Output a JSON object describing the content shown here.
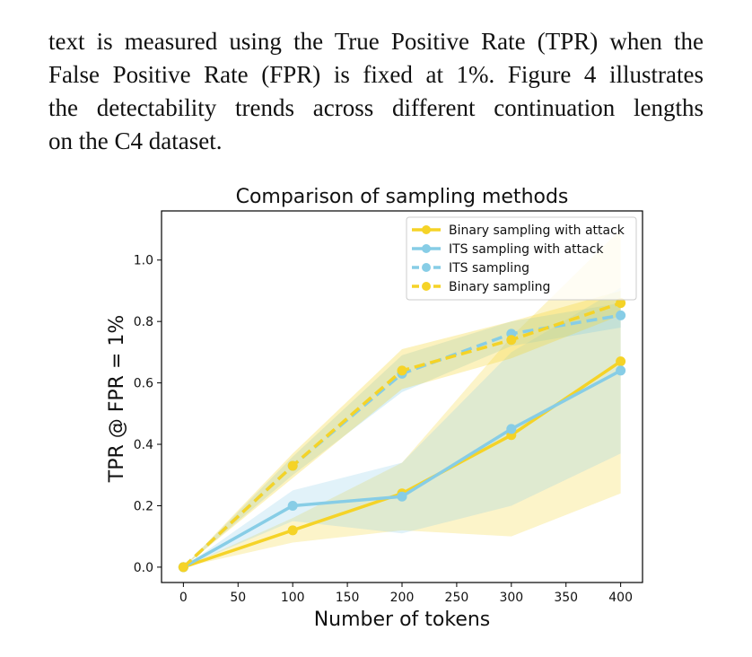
{
  "paragraph": {
    "line1": "text is measured using the True Positive Rate (TPR) when the",
    "line2": "False Positive Rate (FPR) is fixed at 1%. Figure 4 illustrates",
    "line3": "the detectability trends across different continuation lengths",
    "line4": "on the C4 dataset."
  },
  "chart_data": {
    "type": "line",
    "title": "Comparison of sampling methods",
    "xlabel": "Number of tokens",
    "ylabel": "TPR @ FPR = 1%",
    "x": [
      0,
      100,
      200,
      300,
      400
    ],
    "xticks": [
      "0",
      "50",
      "100",
      "150",
      "200",
      "250",
      "300",
      "350",
      "400"
    ],
    "yticks": [
      "0.0",
      "0.2",
      "0.4",
      "0.6",
      "0.8",
      "1.0"
    ],
    "xlim": [
      -20,
      420
    ],
    "ylim": [
      -0.05,
      1.16
    ],
    "grid": false,
    "legend_position": "top-right",
    "series": [
      {
        "name": "Binary sampling with attack",
        "color": "#f5d327",
        "style": "solid",
        "values": [
          0.0,
          0.12,
          0.24,
          0.43,
          0.67
        ],
        "band_lower": [
          0.0,
          0.08,
          0.12,
          0.1,
          0.24
        ],
        "band_upper": [
          0.0,
          0.16,
          0.34,
          0.75,
          1.1
        ]
      },
      {
        "name": "ITS sampling with attack",
        "color": "#87cde6",
        "style": "solid",
        "values": [
          0.0,
          0.2,
          0.23,
          0.45,
          0.64
        ],
        "band_lower": [
          0.0,
          0.15,
          0.11,
          0.2,
          0.37
        ],
        "band_upper": [
          0.0,
          0.25,
          0.34,
          0.7,
          0.91
        ]
      },
      {
        "name": "ITS sampling",
        "color": "#87cde6",
        "style": "dashed",
        "values": [
          0.0,
          0.33,
          0.63,
          0.76,
          0.82
        ],
        "band_lower": [
          0.0,
          0.3,
          0.57,
          0.72,
          0.78
        ],
        "band_upper": [
          0.0,
          0.36,
          0.69,
          0.8,
          0.86
        ]
      },
      {
        "name": "Binary sampling",
        "color": "#f5d327",
        "style": "dashed",
        "values": [
          0.0,
          0.33,
          0.64,
          0.74,
          0.86
        ],
        "band_lower": [
          0.0,
          0.29,
          0.58,
          0.68,
          0.82
        ],
        "band_upper": [
          0.0,
          0.37,
          0.71,
          0.8,
          0.9
        ]
      }
    ]
  }
}
